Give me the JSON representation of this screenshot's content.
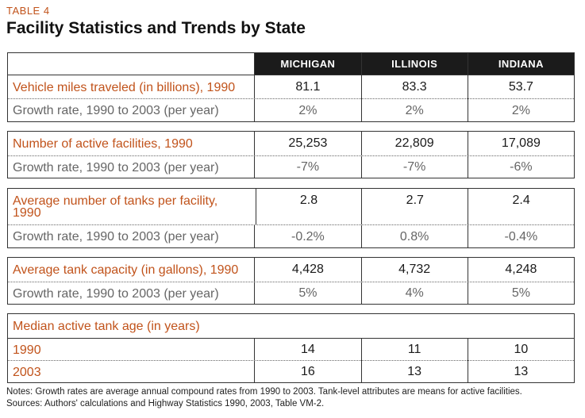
{
  "table_label": "TABLE 4",
  "title": "Facility Statistics and Trends by State",
  "columns": [
    "MICHIGAN",
    "ILLINOIS",
    "INDIANA"
  ],
  "sections": [
    {
      "main_label": "Vehicle miles traveled (in billions), 1990",
      "main_values": [
        "81.1",
        "83.3",
        "53.7"
      ],
      "growth_label": "Growth rate, 1990 to 2003 (per year)",
      "growth_values": [
        "2%",
        "2%",
        "2%"
      ]
    },
    {
      "main_label": "Number of active facilities, 1990",
      "main_values": [
        "25,253",
        "22,809",
        "17,089"
      ],
      "growth_label": "Growth rate, 1990 to 2003 (per year)",
      "growth_values": [
        "-7%",
        "-7%",
        "-6%"
      ]
    },
    {
      "main_label": "Average number of tanks per facility, 1990",
      "main_values": [
        "2.8",
        "2.7",
        "2.4"
      ],
      "growth_label": "Growth rate, 1990 to 2003 (per year)",
      "growth_values": [
        "-0.2%",
        "0.8%",
        "-0.4%"
      ]
    },
    {
      "main_label": "Average tank capacity (in gallons), 1990",
      "main_values": [
        "4,428",
        "4,732",
        "4,248"
      ],
      "growth_label": "Growth rate, 1990 to 2003 (per year)",
      "growth_values": [
        "5%",
        "4%",
        "5%"
      ]
    }
  ],
  "median_section": {
    "heading": "Median active tank age (in years)",
    "rows": [
      {
        "label": "1990",
        "values": [
          "14",
          "11",
          "10"
        ]
      },
      {
        "label": "2003",
        "values": [
          "16",
          "13",
          "13"
        ]
      }
    ]
  },
  "notes": [
    "Notes: Growth rates are average annual compound rates from 1990 to 2003. Tank-level attributes are means for active facilities.",
    "Sources: Authors' calculations and Highway Statistics 1990, 2003, Table VM-2."
  ]
}
